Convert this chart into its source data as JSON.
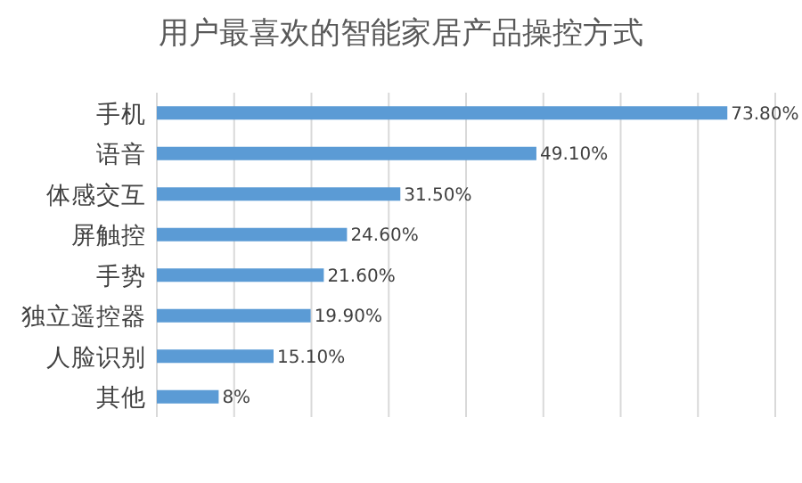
{
  "chart_data": {
    "type": "bar",
    "orientation": "horizontal",
    "title": "用户最喜欢的智能家居产品操控方式",
    "categories": [
      "手机",
      "语音",
      "体感交互",
      "屏触控",
      "手势",
      "独立遥控器",
      "人脸识别",
      "其他"
    ],
    "values": [
      73.8,
      49.1,
      31.5,
      24.6,
      21.6,
      19.9,
      15.1,
      8
    ],
    "value_labels": [
      "73.80%",
      "49.10%",
      "31.50%",
      "24.60%",
      "21.60%",
      "19.90%",
      "15.10%",
      "8%"
    ],
    "color": "#5b9bd5",
    "xlim": [
      0,
      80
    ],
    "xticks": [
      {
        "value": 0,
        "label": null
      },
      {
        "value": 10,
        "label": null
      },
      {
        "value": 20,
        "label": null
      },
      {
        "value": 30,
        "label": null
      },
      {
        "value": 40,
        "label": null
      },
      {
        "value": 50,
        "label": null
      },
      {
        "value": 60,
        "label": null
      },
      {
        "value": 70,
        "label": null
      },
      {
        "value": 80,
        "label": null
      }
    ],
    "grid": "x"
  }
}
